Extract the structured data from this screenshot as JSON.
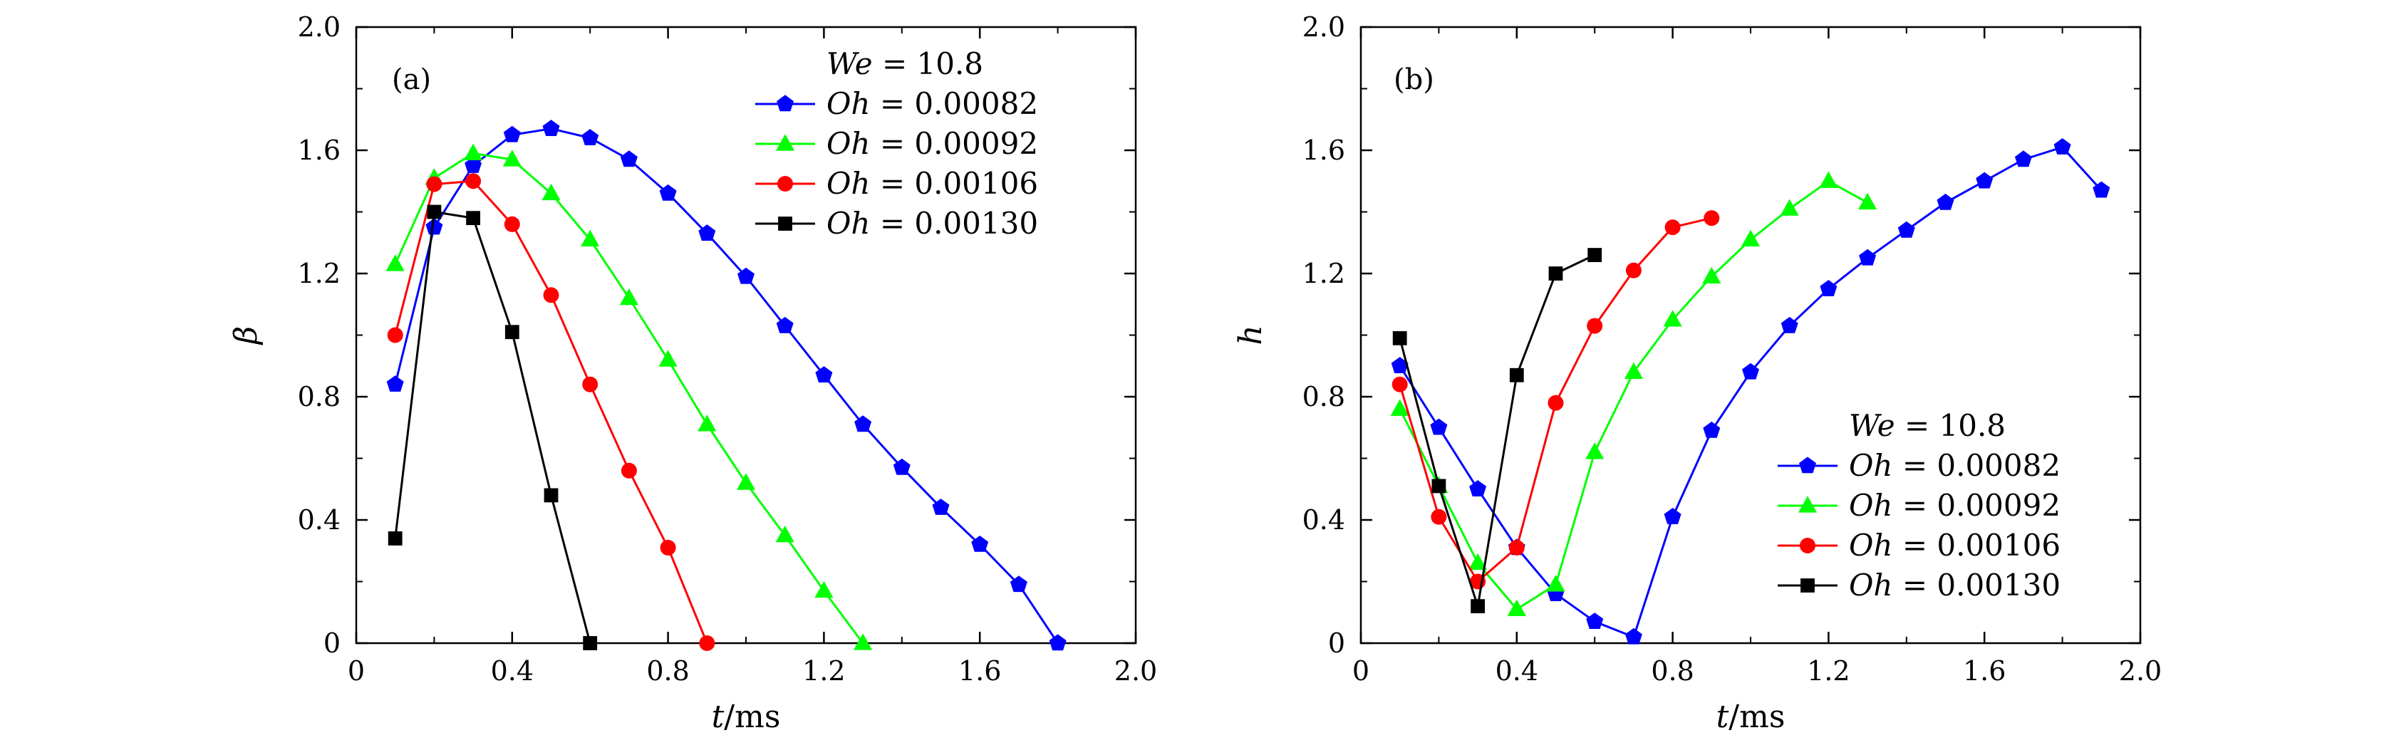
{
  "chart_data": [
    {
      "type": "line",
      "panel_label": "(a)",
      "xlabel": "t/ms",
      "ylabel": "β",
      "xlim": [
        0,
        2.0
      ],
      "ylim": [
        0,
        2.0
      ],
      "xticks": [
        0,
        0.4,
        0.8,
        1.2,
        1.6,
        2.0
      ],
      "xtick_labels": [
        "0",
        "0.4",
        "0.8",
        "1.2",
        "1.6",
        "2.0"
      ],
      "yticks": [
        0,
        0.4,
        0.8,
        1.2,
        1.6,
        2.0
      ],
      "ytick_labels": [
        "0",
        "0.4",
        "0.8",
        "1.2",
        "1.6",
        "2.0"
      ],
      "legend_title": "We = 10.8",
      "legend_position": "top-right",
      "series": [
        {
          "name": "Oh = 0.00082",
          "color": "#0000ff",
          "marker": "pentagon",
          "x": [
            0.1,
            0.2,
            0.3,
            0.4,
            0.5,
            0.6,
            0.7,
            0.8,
            0.9,
            1.0,
            1.1,
            1.2,
            1.3,
            1.4,
            1.5,
            1.6,
            1.7,
            1.8
          ],
          "y": [
            0.84,
            1.35,
            1.55,
            1.65,
            1.67,
            1.64,
            1.57,
            1.46,
            1.33,
            1.19,
            1.03,
            0.87,
            0.71,
            0.57,
            0.44,
            0.32,
            0.19,
            0.0
          ]
        },
        {
          "name": "Oh = 0.00092",
          "color": "#00ff00",
          "marker": "triangle",
          "x": [
            0.1,
            0.2,
            0.3,
            0.4,
            0.5,
            0.6,
            0.7,
            0.8,
            0.9,
            1.0,
            1.1,
            1.2,
            1.3
          ],
          "y": [
            1.23,
            1.51,
            1.59,
            1.57,
            1.46,
            1.31,
            1.12,
            0.92,
            0.71,
            0.52,
            0.35,
            0.17,
            0.0
          ]
        },
        {
          "name": "Oh = 0.00106",
          "color": "#ff0000",
          "marker": "circle",
          "x": [
            0.1,
            0.2,
            0.3,
            0.4,
            0.5,
            0.6,
            0.7,
            0.8,
            0.9
          ],
          "y": [
            1.0,
            1.49,
            1.5,
            1.36,
            1.13,
            0.84,
            0.56,
            0.31,
            0.0
          ]
        },
        {
          "name": "Oh = 0.00130",
          "color": "#000000",
          "marker": "square",
          "x": [
            0.1,
            0.2,
            0.3,
            0.4,
            0.5,
            0.6
          ],
          "y": [
            0.34,
            1.4,
            1.38,
            1.01,
            0.48,
            0.0
          ]
        }
      ]
    },
    {
      "type": "line",
      "panel_label": "(b)",
      "xlabel": "t/ms",
      "ylabel": "h",
      "xlim": [
        0,
        2.0
      ],
      "ylim": [
        0,
        2.0
      ],
      "xticks": [
        0,
        0.4,
        0.8,
        1.2,
        1.6,
        2.0
      ],
      "xtick_labels": [
        "0",
        "0.4",
        "0.8",
        "1.2",
        "1.6",
        "2.0"
      ],
      "yticks": [
        0,
        0.4,
        0.8,
        1.2,
        1.6,
        2.0
      ],
      "ytick_labels": [
        "0",
        "0.4",
        "0.8",
        "1.2",
        "1.6",
        "2.0"
      ],
      "legend_title": "We = 10.8",
      "legend_position": "bottom-right",
      "series": [
        {
          "name": "Oh = 0.00082",
          "color": "#0000ff",
          "marker": "pentagon",
          "x": [
            0.1,
            0.2,
            0.3,
            0.4,
            0.5,
            0.6,
            0.7,
            0.8,
            0.9,
            1.0,
            1.1,
            1.2,
            1.3,
            1.4,
            1.5,
            1.6,
            1.7,
            1.8,
            1.9
          ],
          "y": [
            0.9,
            0.7,
            0.5,
            0.31,
            0.16,
            0.07,
            0.02,
            0.41,
            0.69,
            0.88,
            1.03,
            1.15,
            1.25,
            1.34,
            1.43,
            1.5,
            1.57,
            1.61,
            1.47
          ]
        },
        {
          "name": "Oh = 0.00092",
          "color": "#00ff00",
          "marker": "triangle",
          "x": [
            0.1,
            0.2,
            0.3,
            0.4,
            0.5,
            0.6,
            0.7,
            0.8,
            0.9,
            1.0,
            1.1,
            1.2,
            1.3
          ],
          "y": [
            0.76,
            0.51,
            0.26,
            0.11,
            0.19,
            0.62,
            0.88,
            1.05,
            1.19,
            1.31,
            1.41,
            1.5,
            1.43
          ]
        },
        {
          "name": "Oh = 0.00106",
          "color": "#ff0000",
          "marker": "circle",
          "x": [
            0.1,
            0.2,
            0.3,
            0.4,
            0.5,
            0.6,
            0.7,
            0.8,
            0.9
          ],
          "y": [
            0.84,
            0.41,
            0.2,
            0.31,
            0.78,
            1.03,
            1.21,
            1.35,
            1.38
          ]
        },
        {
          "name": "Oh = 0.00130",
          "color": "#000000",
          "marker": "square",
          "x": [
            0.1,
            0.2,
            0.3,
            0.4,
            0.5,
            0.6
          ],
          "y": [
            0.99,
            0.51,
            0.12,
            0.87,
            1.2,
            1.26
          ]
        }
      ]
    }
  ]
}
